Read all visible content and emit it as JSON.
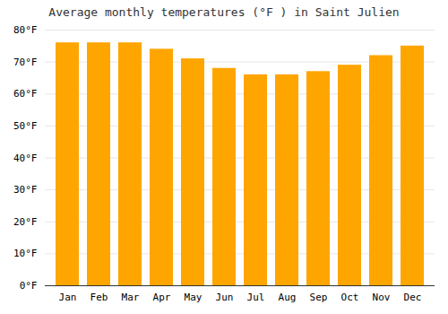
{
  "chart_data": {
    "type": "bar",
    "title": "Average monthly temperatures (°F ) in Saint Julien",
    "categories": [
      "Jan",
      "Feb",
      "Mar",
      "Apr",
      "May",
      "Jun",
      "Jul",
      "Aug",
      "Sep",
      "Oct",
      "Nov",
      "Dec"
    ],
    "values": [
      76,
      76,
      76,
      74,
      71,
      68,
      66,
      66,
      67,
      69,
      72,
      75
    ],
    "color": "#FFA500",
    "ylim": [
      0,
      80
    ],
    "yticks": [
      {
        "value": 0,
        "label": "0°F"
      },
      {
        "value": 10,
        "label": "10°F"
      },
      {
        "value": 20,
        "label": "20°F"
      },
      {
        "value": 30,
        "label": "30°F"
      },
      {
        "value": 40,
        "label": "40°F"
      },
      {
        "value": 50,
        "label": "50°F"
      },
      {
        "value": 60,
        "label": "60°F"
      },
      {
        "value": 70,
        "label": "70°F"
      },
      {
        "value": 80,
        "label": "80°F"
      }
    ],
    "grid": true
  }
}
